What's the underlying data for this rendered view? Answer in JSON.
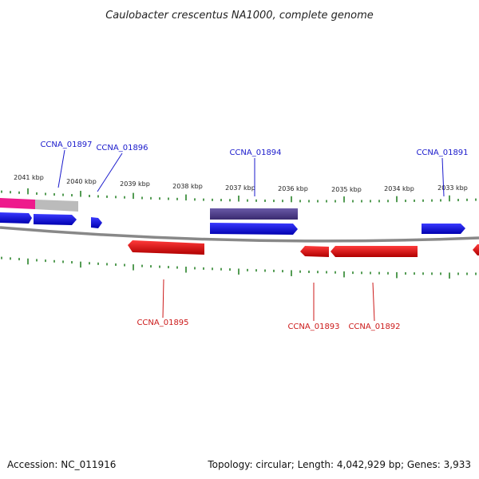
{
  "title": "Caulobacter crescentus NA1000, complete genome",
  "footer": {
    "accession": "Accession: NC_011916",
    "summary": "Topology: circular; Length: 4,042,929 bp; Genes: 3,933"
  },
  "colors": {
    "forward_gene": "#0000ee",
    "reverse_gene": "#ee0000",
    "highlight_gene": "#4a3a8c",
    "pink_feature": "#ee1a8c",
    "grey_feature": "#bbbbbb",
    "backbone": "#888888",
    "tick": "#1a7a1a",
    "label_forward": "#1a1acc",
    "label_reverse": "#cc1a1a"
  },
  "scale_labels": [
    "2041 kbp",
    "2040 kbp",
    "2039 kbp",
    "2038 kbp",
    "2037 kbp",
    "2036 kbp",
    "2035 kbp",
    "2034 kbp",
    "2033 kbp"
  ],
  "gene_labels": {
    "forward": [
      "CCNA_01897",
      "CCNA_01896",
      "CCNA_01894",
      "CCNA_01891"
    ],
    "reverse": [
      "CCNA_01895",
      "CCNA_01893",
      "CCNA_01892"
    ]
  }
}
